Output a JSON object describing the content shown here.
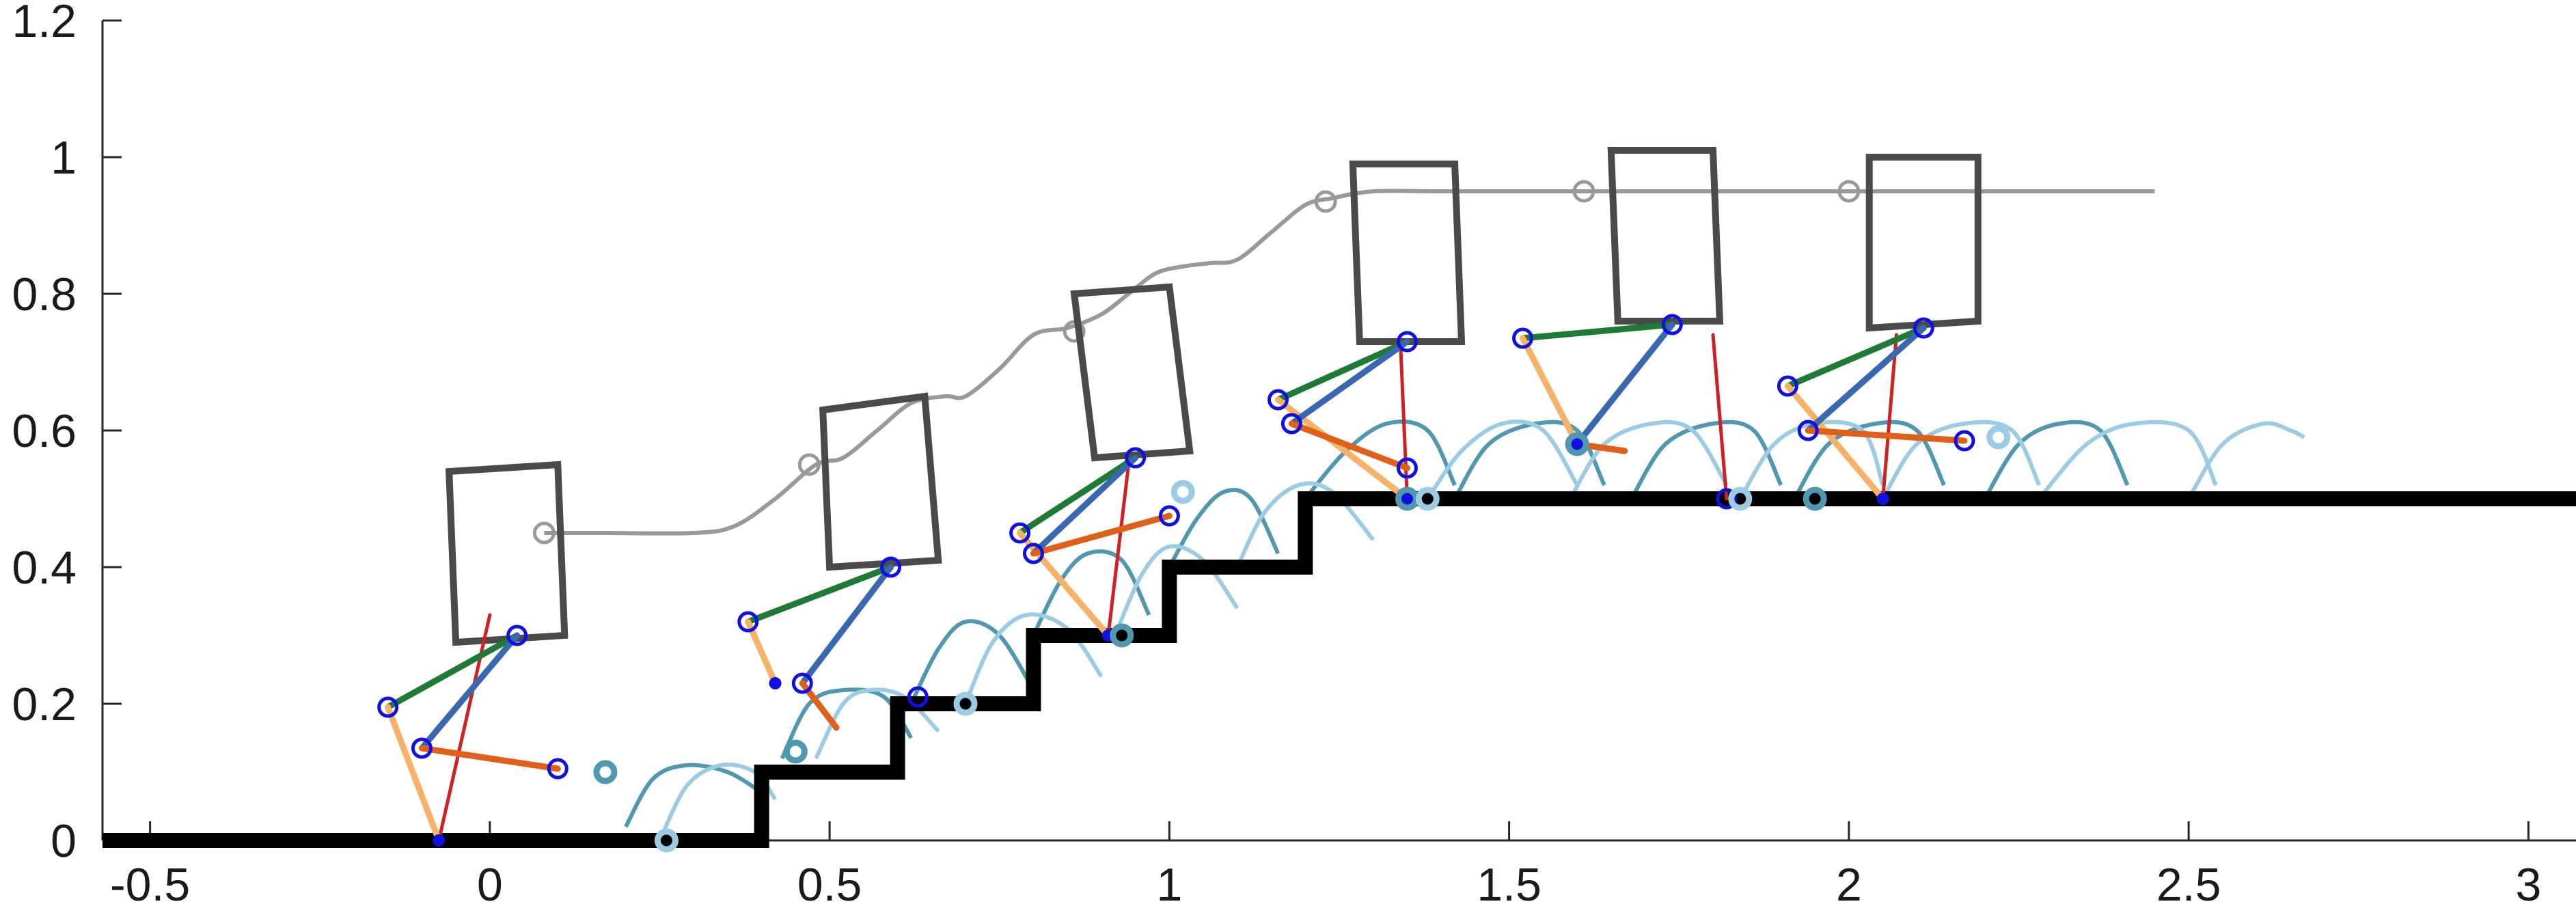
{
  "chart_data": {
    "type": "line",
    "title": "",
    "xlabel": "",
    "ylabel": "",
    "xlim": [
      -0.57,
      3.07
    ],
    "ylim": [
      0,
      1.2
    ],
    "grid": false,
    "x_ticks": [
      -0.5,
      0,
      0.5,
      1,
      1.5,
      2,
      2.5,
      3
    ],
    "x_tick_labels": [
      "-0.5",
      "0",
      "0.5",
      "1",
      "1.5",
      "2",
      "2.5",
      "3"
    ],
    "y_ticks": [
      0,
      0.2,
      0.4,
      0.6,
      0.8,
      1.0,
      1.2
    ],
    "y_tick_labels": [
      "0",
      "0.2",
      "0.4",
      "0.6",
      "0.8",
      "1",
      "1.2"
    ],
    "colors": {
      "ground": "#000000",
      "torso": "#4a4a4a",
      "com_path": "#999999",
      "thigh_a": "#1f7a35",
      "shank_a": "#f7b26a",
      "thigh_b": "#3a68b0",
      "shank_b": "#e0601a",
      "stance_line": "#cc2222",
      "joint_marker": "#1010e0",
      "swing_dark": "#4f98b0",
      "swing_light": "#9ccbe4"
    },
    "terrain": {
      "x": [
        -0.57,
        0.4,
        0.4,
        0.6,
        0.6,
        0.8,
        0.8,
        1.0,
        1.0,
        1.2,
        1.2,
        3.07
      ],
      "y": [
        0,
        0,
        0.1,
        0.1,
        0.2,
        0.2,
        0.3,
        0.3,
        0.4,
        0.4,
        0.5,
        0.5
      ]
    },
    "com_trajectory": {
      "x": [
        0.08,
        0.17,
        0.3,
        0.36,
        0.42,
        0.48,
        0.52,
        0.57,
        0.62,
        0.67,
        0.7,
        0.75,
        0.8,
        0.85,
        0.9,
        0.94,
        0.98,
        1.02,
        1.06,
        1.1,
        1.15,
        1.2,
        1.24,
        1.3,
        1.4,
        1.61,
        2.0,
        2.45
      ],
      "y": [
        0.45,
        0.45,
        0.45,
        0.46,
        0.5,
        0.55,
        0.56,
        0.6,
        0.64,
        0.65,
        0.65,
        0.69,
        0.74,
        0.75,
        0.77,
        0.8,
        0.83,
        0.84,
        0.845,
        0.85,
        0.89,
        0.93,
        0.94,
        0.95,
        0.95,
        0.95,
        0.95,
        0.95
      ],
      "markers": [
        [
          0.08,
          0.45
        ],
        [
          0.47,
          0.55
        ],
        [
          0.86,
          0.745
        ],
        [
          1.23,
          0.935
        ],
        [
          1.61,
          0.95
        ],
        [
          2.0,
          0.95
        ]
      ]
    },
    "torsos": [
      [
        [
          -0.05,
          0.29
        ],
        [
          0.11,
          0.3
        ],
        [
          0.1,
          0.55
        ],
        [
          -0.06,
          0.54
        ]
      ],
      [
        [
          0.5,
          0.4
        ],
        [
          0.66,
          0.41
        ],
        [
          0.64,
          0.65
        ],
        [
          0.49,
          0.63
        ]
      ],
      [
        [
          0.89,
          0.56
        ],
        [
          1.03,
          0.57
        ],
        [
          1.0,
          0.81
        ],
        [
          0.86,
          0.8
        ]
      ],
      [
        [
          1.28,
          0.73
        ],
        [
          1.43,
          0.73
        ],
        [
          1.42,
          0.99
        ],
        [
          1.27,
          0.99
        ]
      ],
      [
        [
          1.66,
          0.76
        ],
        [
          1.81,
          0.76
        ],
        [
          1.8,
          1.01
        ],
        [
          1.65,
          1.01
        ]
      ],
      [
        [
          2.03,
          0.75
        ],
        [
          2.19,
          0.76
        ],
        [
          2.19,
          1.0
        ],
        [
          2.03,
          1.0
        ]
      ]
    ],
    "robot_legs": [
      {
        "hip": [
          0.04,
          0.3
        ],
        "knee_a": [
          -0.15,
          0.195
        ],
        "foot_a": [
          -0.075,
          0.0
        ],
        "knee_b": [
          -0.1,
          0.135
        ],
        "foot_b": [
          0.1,
          0.105
        ],
        "stance": [
          [
            -0.075,
            0.0
          ],
          [
            0.0,
            0.33
          ]
        ]
      },
      {
        "hip": [
          0.59,
          0.4
        ],
        "knee_a": [
          0.38,
          0.32
        ],
        "foot_a": [
          0.42,
          0.23
        ],
        "knee_b": [
          0.46,
          0.23
        ],
        "foot_b": [
          0.63,
          0.21
        ],
        "shank_b_end": [
          0.51,
          0.165
        ],
        "stance": null
      },
      {
        "hip": [
          0.95,
          0.56
        ],
        "knee_a": [
          0.78,
          0.45
        ],
        "foot_a": [
          0.91,
          0.3
        ],
        "knee_b": [
          0.8,
          0.42
        ],
        "foot_b": [
          1.0,
          0.475
        ],
        "stance": [
          [
            0.91,
            0.3
          ],
          [
            0.94,
            0.55
          ]
        ]
      },
      {
        "hip": [
          1.35,
          0.73
        ],
        "knee_a": [
          1.16,
          0.645
        ],
        "foot_a": [
          1.35,
          0.5
        ],
        "knee_b": [
          1.18,
          0.61
        ],
        "foot_b": [
          1.35,
          0.545
        ],
        "stance": [
          [
            1.35,
            0.5
          ],
          [
            1.34,
            0.73
          ]
        ]
      },
      {
        "hip": [
          1.74,
          0.755
        ],
        "knee_a": [
          1.52,
          0.735
        ],
        "foot_a": [
          1.6,
          0.58
        ],
        "knee_b": [
          1.6,
          0.58
        ],
        "foot_b": [
          1.82,
          0.5
        ],
        "shank_b_end": [
          1.67,
          0.57
        ],
        "stance": [
          [
            1.82,
            0.5
          ],
          [
            1.8,
            0.74
          ]
        ]
      },
      {
        "hip": [
          2.11,
          0.75
        ],
        "knee_a": [
          1.91,
          0.665
        ],
        "foot_a": [
          2.05,
          0.5
        ],
        "knee_b": [
          1.94,
          0.6
        ],
        "foot_b": [
          2.17,
          0.585
        ],
        "stance": [
          [
            2.05,
            0.5
          ],
          [
            2.07,
            0.74
          ]
        ]
      }
    ],
    "swing_arcs": {
      "dark": [
        [
          0.2,
          0.02,
          0.24,
          0.09,
          0.29,
          0.11,
          0.35,
          0.1,
          0.4,
          0.07
        ],
        [
          0.43,
          0.12,
          0.47,
          0.2,
          0.52,
          0.22,
          0.58,
          0.21,
          0.62,
          0.15
        ],
        [
          0.62,
          0.2,
          0.66,
          0.28,
          0.7,
          0.32,
          0.75,
          0.3,
          0.8,
          0.22
        ],
        [
          0.8,
          0.3,
          0.84,
          0.38,
          0.88,
          0.42,
          0.93,
          0.41,
          0.97,
          0.33
        ],
        [
          1.0,
          0.4,
          1.04,
          0.47,
          1.08,
          0.51,
          1.12,
          0.5,
          1.16,
          0.42
        ],
        [
          1.2,
          0.5,
          1.26,
          0.57,
          1.32,
          0.61,
          1.38,
          0.6,
          1.42,
          0.52
        ],
        [
          1.42,
          0.5,
          1.47,
          0.58,
          1.54,
          0.61,
          1.6,
          0.6,
          1.64,
          0.52
        ],
        [
          1.68,
          0.5,
          1.73,
          0.58,
          1.8,
          0.61,
          1.86,
          0.6,
          1.9,
          0.52
        ],
        [
          1.92,
          0.5,
          1.97,
          0.58,
          2.04,
          0.61,
          2.1,
          0.6,
          2.14,
          0.52
        ],
        [
          2.2,
          0.5,
          2.25,
          0.58,
          2.31,
          0.61,
          2.37,
          0.6,
          2.41,
          0.52
        ]
      ],
      "light": [
        [
          0.25,
          0.0,
          0.29,
          0.08,
          0.34,
          0.11,
          0.39,
          0.1,
          0.42,
          0.06
        ],
        [
          0.48,
          0.12,
          0.52,
          0.2,
          0.56,
          0.22,
          0.61,
          0.21,
          0.66,
          0.16
        ],
        [
          0.7,
          0.2,
          0.74,
          0.29,
          0.79,
          0.33,
          0.85,
          0.31,
          0.9,
          0.24
        ],
        [
          0.92,
          0.3,
          0.96,
          0.39,
          1.0,
          0.43,
          1.05,
          0.41,
          1.1,
          0.34
        ],
        [
          1.1,
          0.4,
          1.14,
          0.48,
          1.19,
          0.52,
          1.24,
          0.51,
          1.3,
          0.44
        ],
        [
          1.38,
          0.5,
          1.43,
          0.57,
          1.49,
          0.61,
          1.55,
          0.6,
          1.6,
          0.52
        ],
        [
          1.59,
          0.5,
          1.64,
          0.58,
          1.71,
          0.61,
          1.77,
          0.6,
          1.82,
          0.52
        ],
        [
          1.84,
          0.5,
          1.89,
          0.58,
          1.95,
          0.61,
          2.02,
          0.6,
          2.05,
          0.52
        ],
        [
          2.05,
          0.5,
          2.1,
          0.58,
          2.17,
          0.61,
          2.24,
          0.6,
          2.28,
          0.52
        ],
        [
          2.28,
          0.5,
          2.35,
          0.58,
          2.42,
          0.61,
          2.5,
          0.6,
          2.54,
          0.52
        ],
        [
          2.5,
          0.5,
          2.55,
          0.58,
          2.61,
          0.61,
          2.65,
          0.6,
          2.67,
          0.59
        ]
      ]
    },
    "footholds": {
      "dark": [
        [
          0.17,
          0.1
        ],
        [
          0.45,
          0.13
        ],
        [
          0.93,
          0.3
        ],
        [
          1.35,
          0.5
        ],
        [
          1.6,
          0.58
        ],
        [
          1.95,
          0.5
        ]
      ],
      "light": [
        [
          0.26,
          0.0
        ],
        [
          0.7,
          0.2
        ],
        [
          1.02,
          0.51
        ],
        [
          1.38,
          0.5
        ],
        [
          1.84,
          0.5
        ],
        [
          2.22,
          0.59
        ]
      ]
    }
  }
}
